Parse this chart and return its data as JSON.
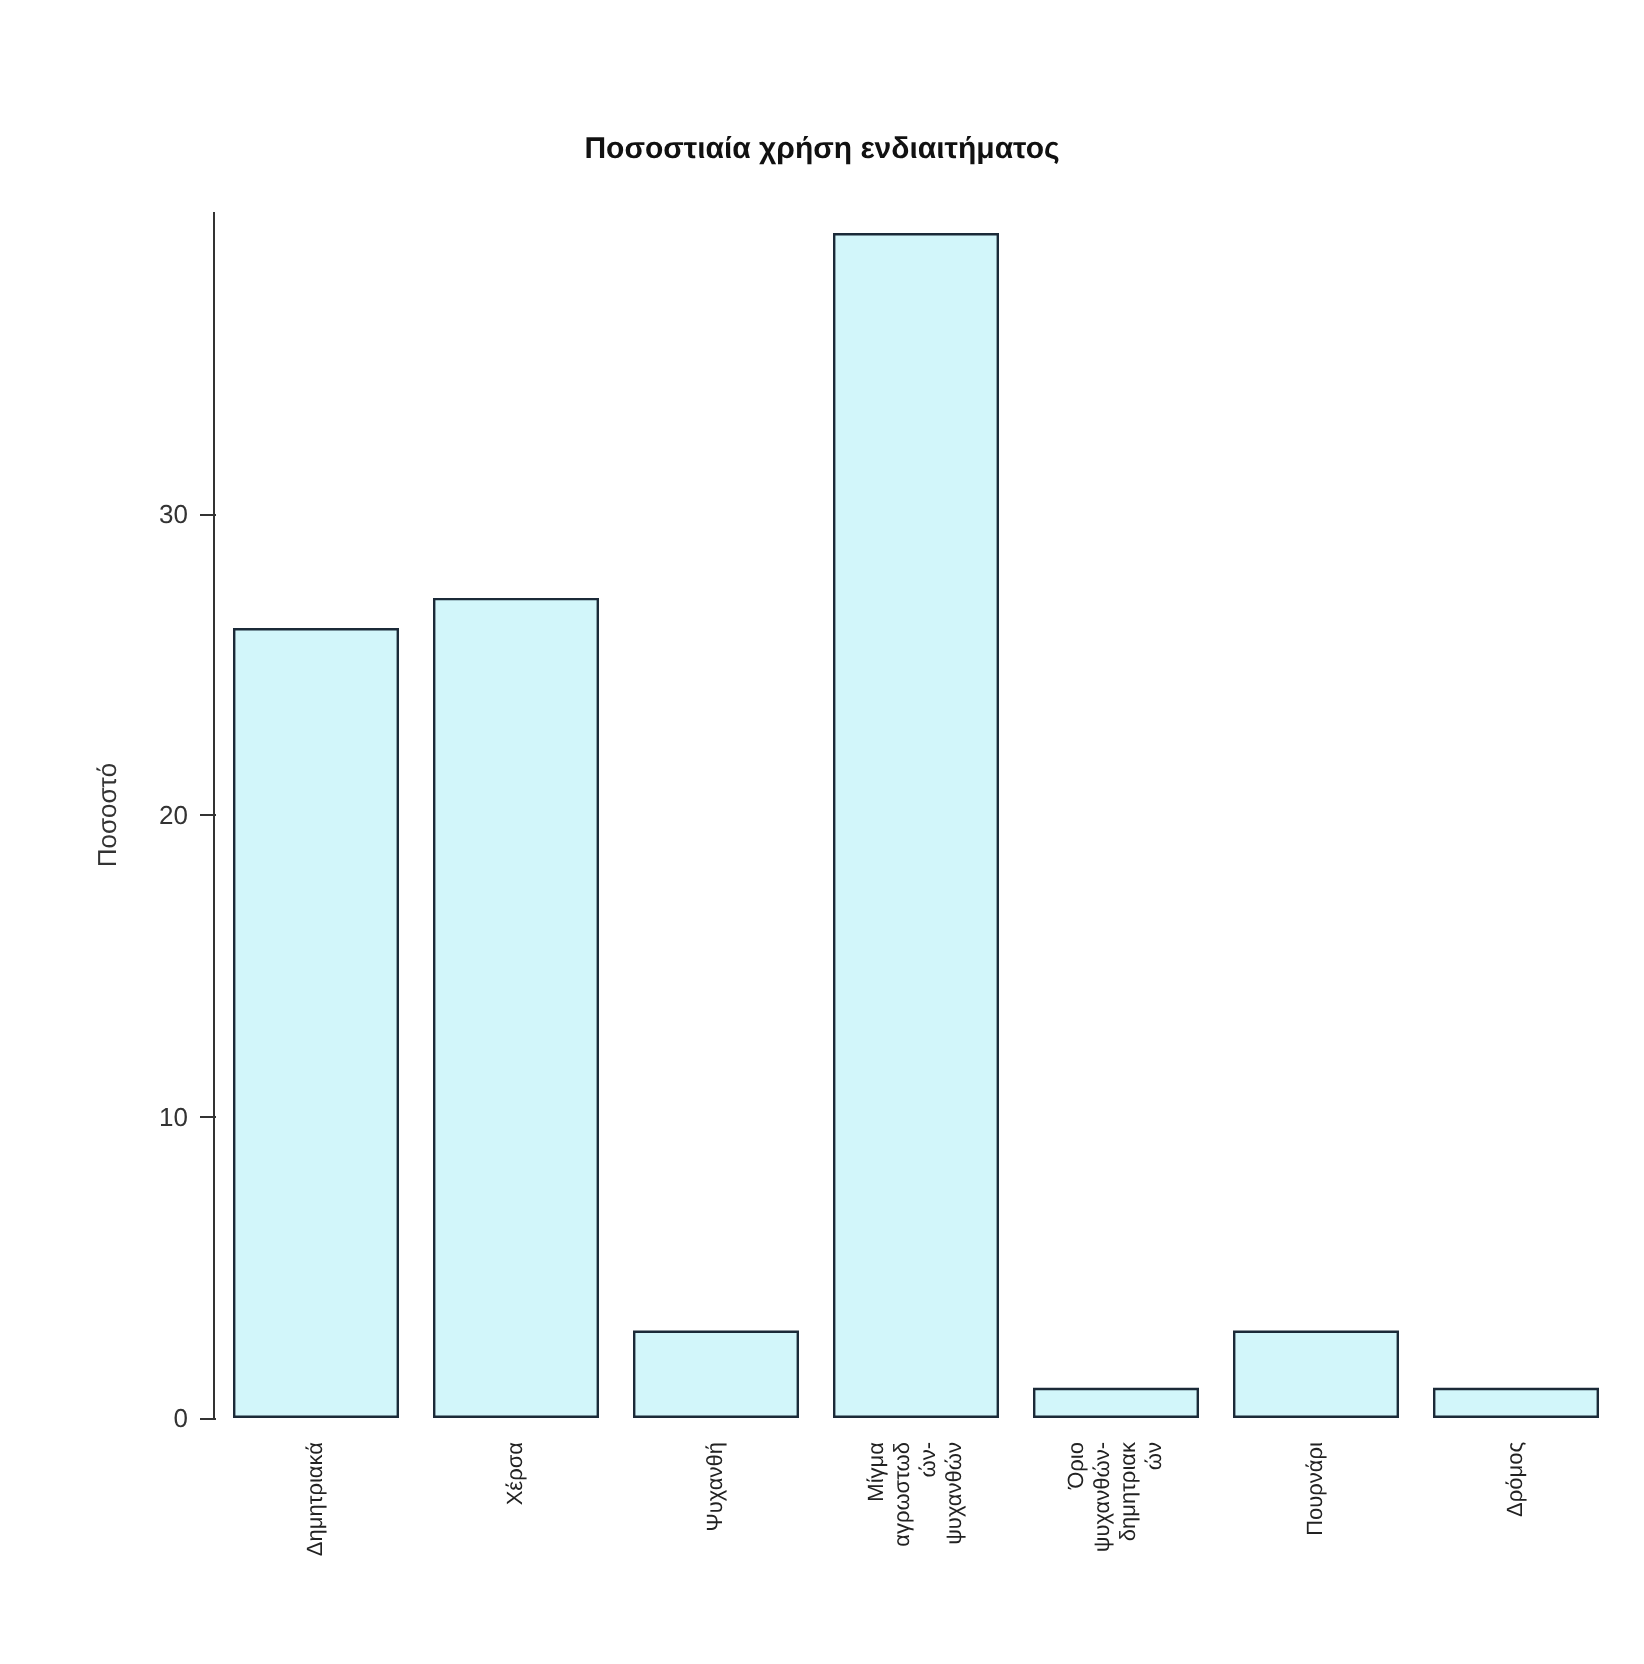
{
  "chart_data": {
    "type": "bar",
    "title": "Ποσοστιαία χρήση ενδιαιτήματος",
    "ylabel": "Ποσοστό",
    "categories": [
      "Δημητριακά",
      "Χέρσα",
      "Ψυχανθή",
      "Μίγμα\nαγρωστωδ\nών-\nψυχανθών",
      "Όριο\nψυχανθών-\nδημητριακ\nών",
      "Πουρνάρι",
      "Δρόμος"
    ],
    "values": [
      26.2,
      27.2,
      2.9,
      39.3,
      1.0,
      2.9,
      1.0
    ],
    "color": "#d2f6fa",
    "ylim": [
      0,
      40
    ],
    "yticks": [
      0,
      10,
      20,
      30
    ],
    "grid": false
  }
}
